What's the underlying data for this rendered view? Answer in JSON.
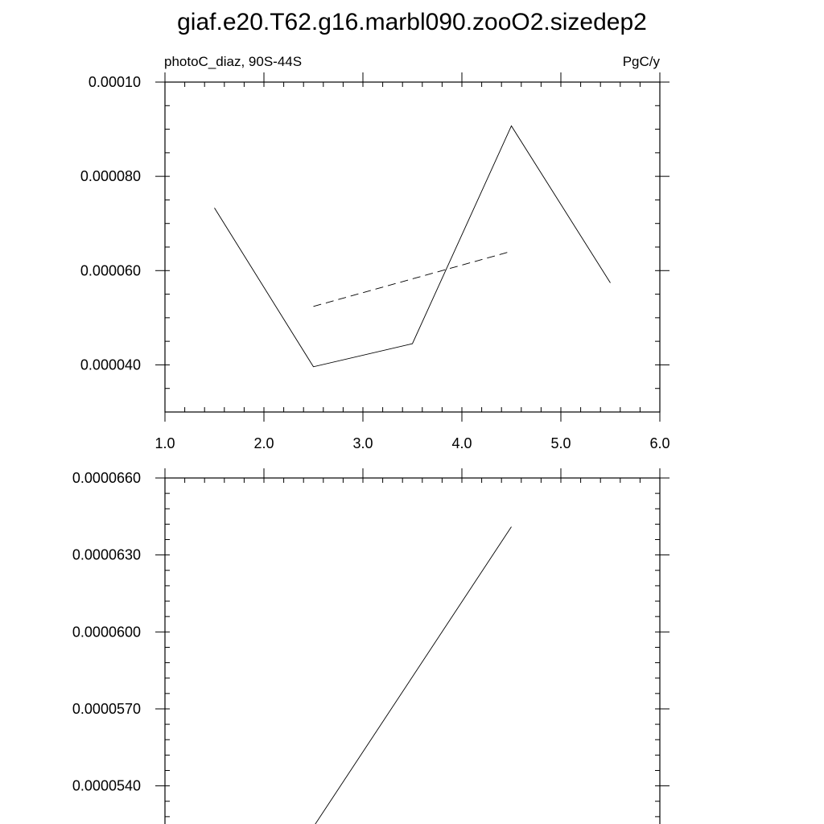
{
  "title": "giaf.e20.T62.g16.marbl090.zooO2.sizedep2",
  "chart_data": [
    {
      "type": "line",
      "left_label": "photoC_diaz, 90S-44S",
      "right_label": "PgC/y",
      "xlim": [
        1.0,
        6.0
      ],
      "ylim": [
        3e-05,
        0.0001
      ],
      "x_ticks": [
        1.0,
        2.0,
        3.0,
        4.0,
        5.0,
        6.0
      ],
      "x_tick_labels": [
        "1.0",
        "2.0",
        "3.0",
        "4.0",
        "5.0",
        "6.0"
      ],
      "y_ticks": [
        4e-05,
        6e-05,
        8e-05,
        0.0001
      ],
      "y_tick_labels": [
        "0.000040",
        "0.000060",
        "0.000080",
        "0.00010"
      ],
      "y_minor_step": 5e-06,
      "x_minor_step": 0.2,
      "series": [
        {
          "style": "solid",
          "x": [
            1.5,
            2.5,
            3.5,
            4.5,
            5.5
          ],
          "y": [
            7.33e-05,
            3.96e-05,
            4.45e-05,
            9.07e-05,
            5.74e-05
          ]
        },
        {
          "style": "dashed",
          "x": [
            2.5,
            4.5
          ],
          "y": [
            5.24e-05,
            6.41e-05
          ]
        }
      ]
    },
    {
      "type": "line",
      "xlim": [
        1.0,
        6.0
      ],
      "ylim": [
        5.22e-05,
        6.6e-05
      ],
      "x_ticks": [
        1.0,
        2.0,
        3.0,
        4.0,
        5.0,
        6.0
      ],
      "y_ticks": [
        5.4e-05,
        5.7e-05,
        6e-05,
        6.3e-05,
        6.6e-05
      ],
      "y_tick_labels": [
        "0.0000540",
        "0.0000570",
        "0.0000600",
        "0.0000630",
        "0.0000660"
      ],
      "y_minor_step": 6e-07,
      "x_minor_step": 0.2,
      "series": [
        {
          "style": "solid",
          "x": [
            2.5,
            4.5
          ],
          "y": [
            5.24e-05,
            6.41e-05
          ]
        }
      ]
    }
  ]
}
